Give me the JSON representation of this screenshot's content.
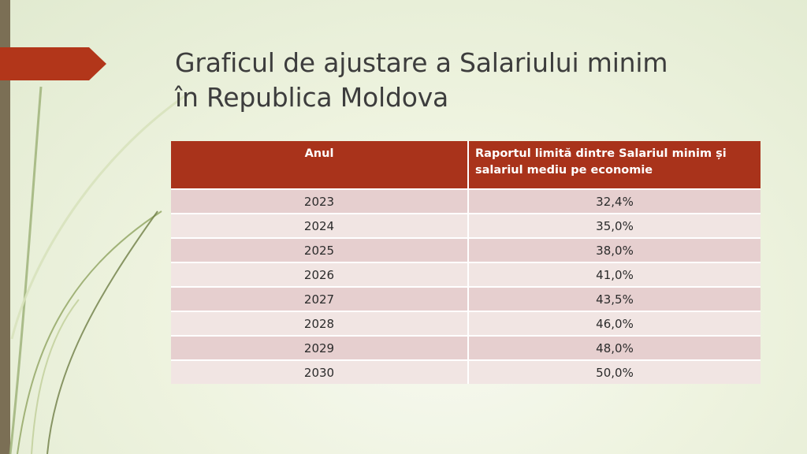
{
  "slide": {
    "title_line1": "Graficul de ajustare a Salariului minim",
    "title_line2": "în Republica Moldova"
  },
  "table": {
    "headers": {
      "year": "Anul",
      "ratio": "Raportul limită dintre Salariul minim și salariul mediu pe economie"
    },
    "rows": [
      {
        "year": "2023",
        "ratio": "32,4%"
      },
      {
        "year": "2024",
        "ratio": "35,0%"
      },
      {
        "year": "2025",
        "ratio": "38,0%"
      },
      {
        "year": "2026",
        "ratio": "41,0%"
      },
      {
        "year": "2027",
        "ratio": "43,5%"
      },
      {
        "year": "2028",
        "ratio": "46,0%"
      },
      {
        "year": "2029",
        "ratio": "48,0%"
      },
      {
        "year": "2030",
        "ratio": "50,0%"
      }
    ]
  },
  "colors": {
    "accent": "#a9331b",
    "row_odd": "#e6cfcf",
    "row_even": "#f1e5e3",
    "side_bar": "#7b6f55"
  }
}
